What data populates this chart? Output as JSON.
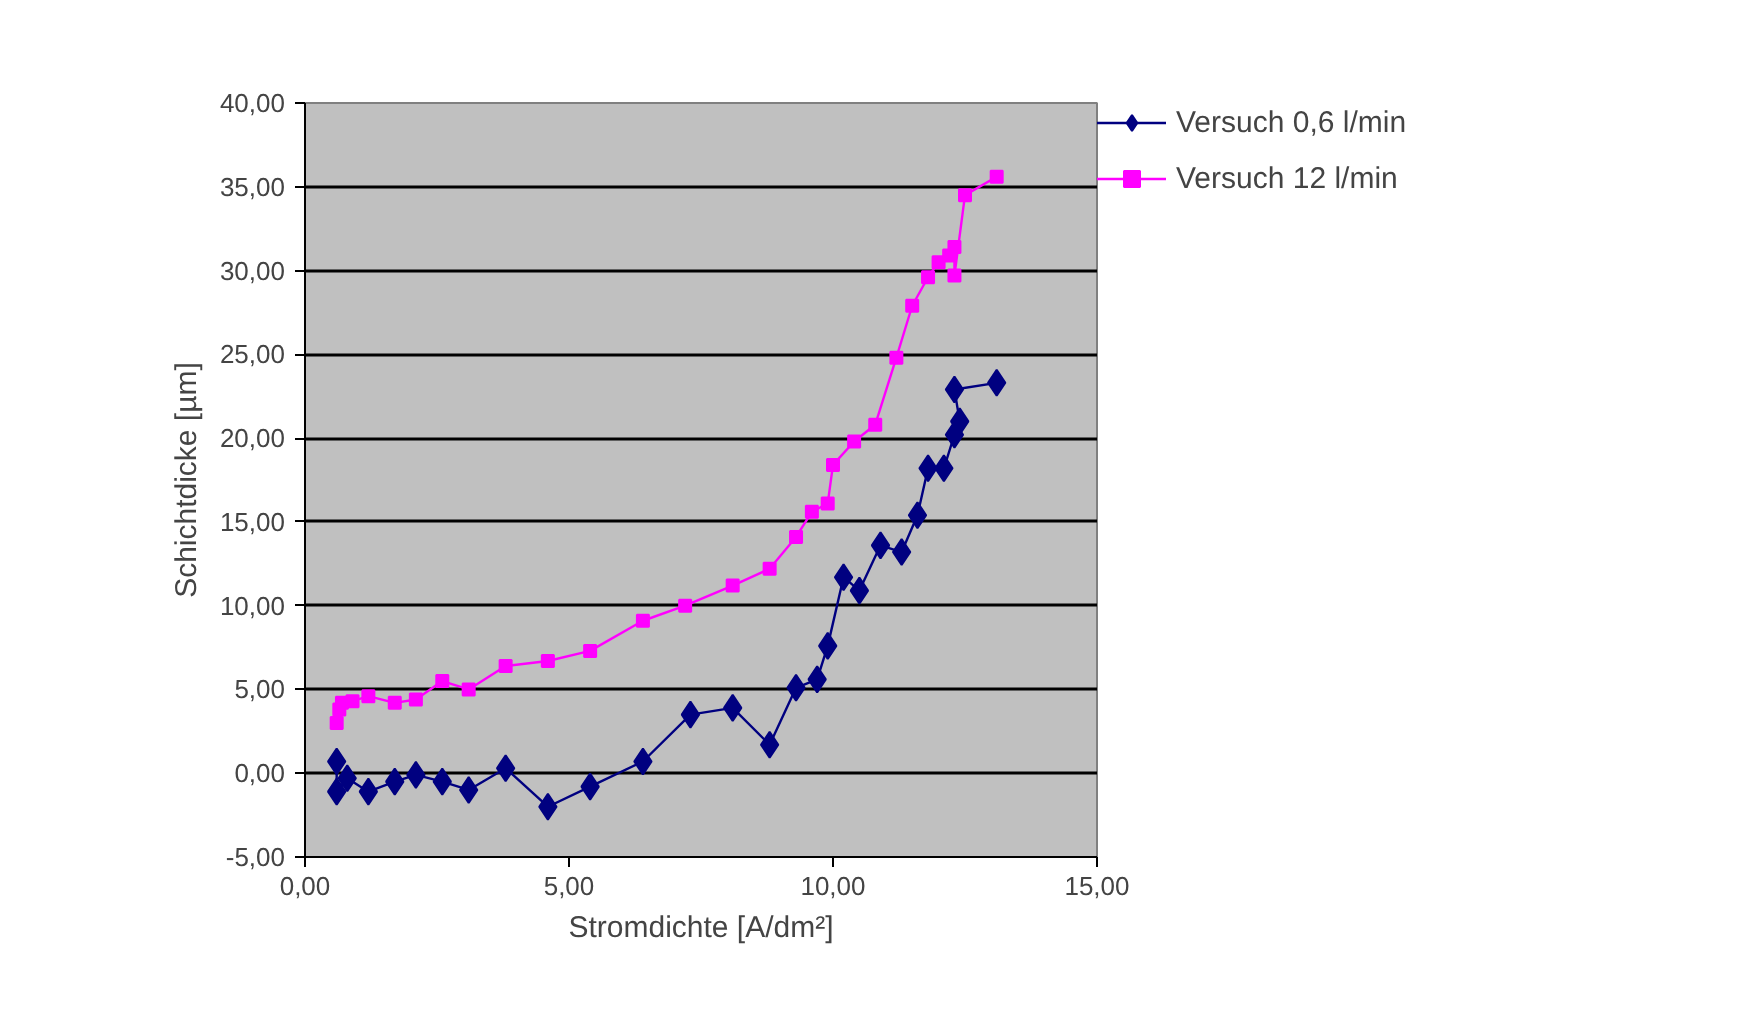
{
  "chart_data": {
    "type": "line",
    "xlabel": "Stromdichte [A/dm²]",
    "ylabel": "Schichtdicke [µm]",
    "xlim": [
      0,
      15
    ],
    "ylim": [
      -5,
      40
    ],
    "xticks": [
      {
        "value": 0,
        "label": "0,00"
      },
      {
        "value": 5,
        "label": "5,00"
      },
      {
        "value": 10,
        "label": "10,00"
      },
      {
        "value": 15,
        "label": "15,00"
      }
    ],
    "yticks": [
      {
        "value": -5,
        "label": "-5,00"
      },
      {
        "value": 0,
        "label": "0,00"
      },
      {
        "value": 5,
        "label": "5,00"
      },
      {
        "value": 10,
        "label": "10,00"
      },
      {
        "value": 15,
        "label": "15,00"
      },
      {
        "value": 20,
        "label": "20,00"
      },
      {
        "value": 25,
        "label": "25,00"
      },
      {
        "value": 30,
        "label": "30,00"
      },
      {
        "value": 35,
        "label": "35,00"
      },
      {
        "value": 40,
        "label": "40,00"
      }
    ],
    "grid": "y",
    "legend": "right",
    "series": [
      {
        "name": "Versuch 0,6 l/min",
        "color": "#000080",
        "marker": "diamond",
        "x": [
          0.6,
          0.6,
          0.8,
          1.2,
          1.7,
          2.1,
          2.6,
          3.1,
          3.8,
          4.6,
          5.4,
          6.4,
          7.3,
          8.1,
          8.8,
          9.3,
          9.7,
          9.9,
          10.2,
          10.5,
          10.9,
          11.3,
          11.6,
          11.8,
          12.1,
          12.3,
          12.4,
          12.3,
          13.1
        ],
        "values": [
          0.7,
          -1.1,
          -0.3,
          -1.1,
          -0.5,
          -0.1,
          -0.5,
          -1.0,
          0.3,
          -2.0,
          -0.8,
          0.7,
          3.5,
          3.9,
          1.7,
          5.1,
          5.6,
          7.6,
          11.7,
          10.9,
          13.6,
          13.2,
          15.4,
          18.2,
          18.2,
          20.2,
          21.0,
          22.9,
          23.3
        ]
      },
      {
        "name": "Versuch 12 l/min",
        "color": "#ff00ff",
        "marker": "square",
        "x": [
          0.6,
          0.65,
          0.7,
          0.9,
          1.2,
          1.7,
          2.1,
          2.6,
          3.1,
          3.8,
          4.6,
          5.4,
          6.4,
          7.2,
          8.1,
          8.8,
          9.3,
          9.6,
          9.9,
          10.0,
          10.4,
          10.8,
          11.2,
          11.5,
          11.8,
          12.0,
          12.2,
          12.3,
          12.3,
          12.5,
          13.1
        ],
        "values": [
          3.0,
          3.8,
          4.2,
          4.3,
          4.6,
          4.2,
          4.4,
          5.5,
          5.0,
          6.4,
          6.7,
          7.3,
          9.1,
          10.0,
          11.2,
          12.2,
          14.1,
          15.6,
          16.1,
          18.4,
          19.8,
          20.8,
          24.8,
          27.9,
          29.6,
          30.5,
          30.9,
          31.4,
          29.7,
          34.5,
          35.6
        ]
      }
    ]
  }
}
